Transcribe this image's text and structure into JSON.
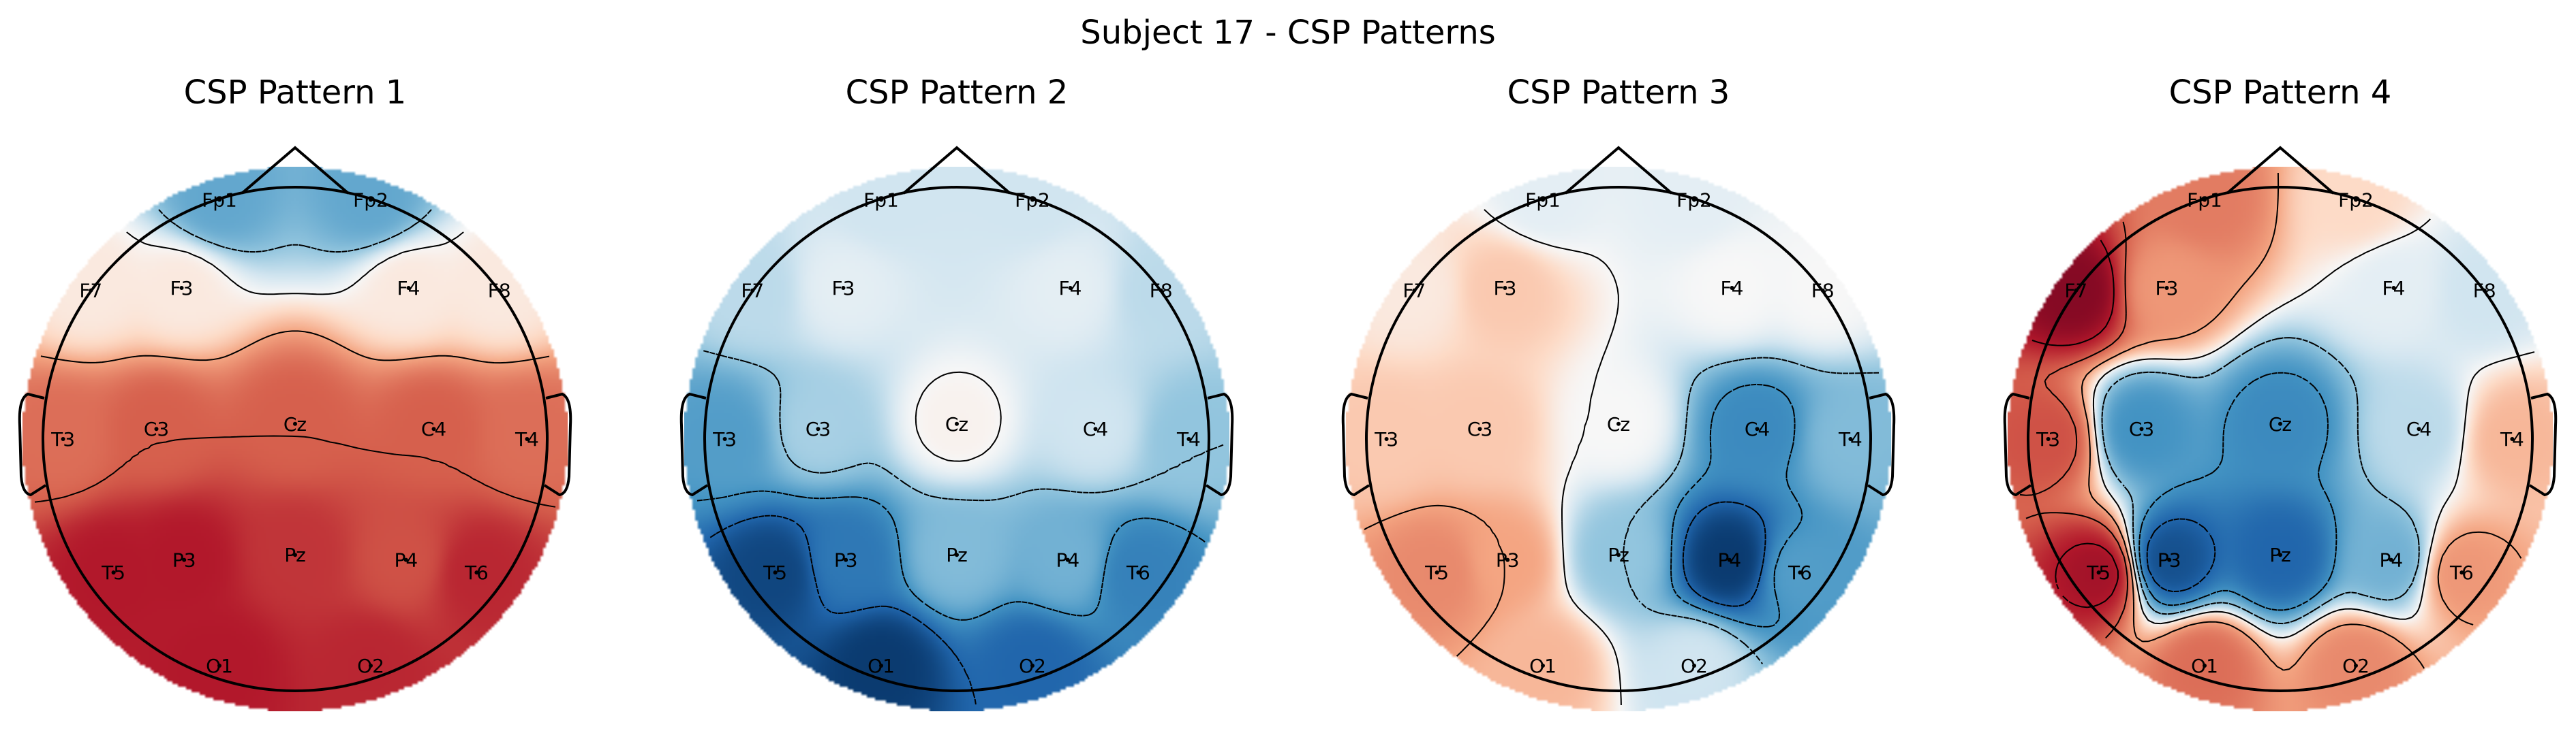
{
  "figure": {
    "title": "Subject 17 - CSP Patterns"
  },
  "chart_data": [
    {
      "type": "heatmap",
      "title": "CSP Pattern 1",
      "colormap": "RdBu_r",
      "vmin": -1,
      "vmax": 1,
      "contours": true,
      "electrodes": [
        {
          "label": "Fp1",
          "value": -0.4
        },
        {
          "label": "Fp2",
          "value": -0.4
        },
        {
          "label": "F7",
          "value": 0.05
        },
        {
          "label": "F3",
          "value": 0.05
        },
        {
          "label": "F4",
          "value": 0.05
        },
        {
          "label": "F8",
          "value": 0.05
        },
        {
          "label": "T3",
          "value": 0.45
        },
        {
          "label": "C3",
          "value": 0.5
        },
        {
          "label": "Cz",
          "value": 0.5
        },
        {
          "label": "C4",
          "value": 0.5
        },
        {
          "label": "T4",
          "value": 0.45
        },
        {
          "label": "T5",
          "value": 0.75
        },
        {
          "label": "P3",
          "value": 0.75
        },
        {
          "label": "Pz",
          "value": 0.65
        },
        {
          "label": "P4",
          "value": 0.55
        },
        {
          "label": "T6",
          "value": 0.7
        },
        {
          "label": "O1",
          "value": 0.75
        },
        {
          "label": "O2",
          "value": 0.7
        }
      ]
    },
    {
      "type": "heatmap",
      "title": "CSP Pattern 2",
      "colormap": "RdBu_r",
      "vmin": -1,
      "vmax": 1,
      "contours": true,
      "electrodes": [
        {
          "label": "Fp1",
          "value": -0.1
        },
        {
          "label": "Fp2",
          "value": -0.1
        },
        {
          "label": "F7",
          "value": -0.15
        },
        {
          "label": "F3",
          "value": -0.05
        },
        {
          "label": "F4",
          "value": -0.05
        },
        {
          "label": "F8",
          "value": -0.15
        },
        {
          "label": "T3",
          "value": -0.45
        },
        {
          "label": "C3",
          "value": -0.2
        },
        {
          "label": "Cz",
          "value": 0.02
        },
        {
          "label": "C4",
          "value": -0.1
        },
        {
          "label": "T4",
          "value": -0.25
        },
        {
          "label": "T5",
          "value": -0.9
        },
        {
          "label": "P3",
          "value": -0.65
        },
        {
          "label": "Pz",
          "value": -0.3
        },
        {
          "label": "P4",
          "value": -0.35
        },
        {
          "label": "T6",
          "value": -0.6
        },
        {
          "label": "O1",
          "value": -0.95
        },
        {
          "label": "O2",
          "value": -0.75
        }
      ]
    },
    {
      "type": "heatmap",
      "title": "CSP Pattern 3",
      "colormap": "RdBu_r",
      "vmin": -1,
      "vmax": 1,
      "contours": true,
      "electrodes": [
        {
          "label": "Fp1",
          "value": -0.05
        },
        {
          "label": "Fp2",
          "value": -0.05
        },
        {
          "label": "F7",
          "value": 0.05
        },
        {
          "label": "F3",
          "value": 0.15
        },
        {
          "label": "F4",
          "value": 0.0
        },
        {
          "label": "F8",
          "value": 0.0
        },
        {
          "label": "T3",
          "value": 0.15
        },
        {
          "label": "C3",
          "value": 0.15
        },
        {
          "label": "Cz",
          "value": 0.0
        },
        {
          "label": "C4",
          "value": -0.55
        },
        {
          "label": "T4",
          "value": -0.3
        },
        {
          "label": "T5",
          "value": 0.35
        },
        {
          "label": "P3",
          "value": 0.25
        },
        {
          "label": "Pz",
          "value": -0.25
        },
        {
          "label": "P4",
          "value": -0.95
        },
        {
          "label": "T6",
          "value": -0.45
        },
        {
          "label": "O1",
          "value": 0.2
        },
        {
          "label": "O2",
          "value": -0.1
        }
      ]
    },
    {
      "type": "heatmap",
      "title": "CSP Pattern 4",
      "colormap": "RdBu_r",
      "vmin": -1,
      "vmax": 1,
      "contours": true,
      "electrodes": [
        {
          "label": "Fp1",
          "value": 0.4
        },
        {
          "label": "Fp2",
          "value": 0.1
        },
        {
          "label": "F7",
          "value": 0.9
        },
        {
          "label": "F3",
          "value": 0.3
        },
        {
          "label": "F4",
          "value": -0.05
        },
        {
          "label": "F8",
          "value": -0.1
        },
        {
          "label": "T3",
          "value": 0.55
        },
        {
          "label": "C3",
          "value": -0.5
        },
        {
          "label": "Cz",
          "value": -0.55
        },
        {
          "label": "C4",
          "value": -0.15
        },
        {
          "label": "T4",
          "value": 0.2
        },
        {
          "label": "T5",
          "value": 0.8
        },
        {
          "label": "P3",
          "value": -0.85
        },
        {
          "label": "Pz",
          "value": -0.75
        },
        {
          "label": "P4",
          "value": -0.35
        },
        {
          "label": "T6",
          "value": 0.3
        },
        {
          "label": "O1",
          "value": 0.45
        },
        {
          "label": "O2",
          "value": 0.35
        }
      ]
    }
  ]
}
